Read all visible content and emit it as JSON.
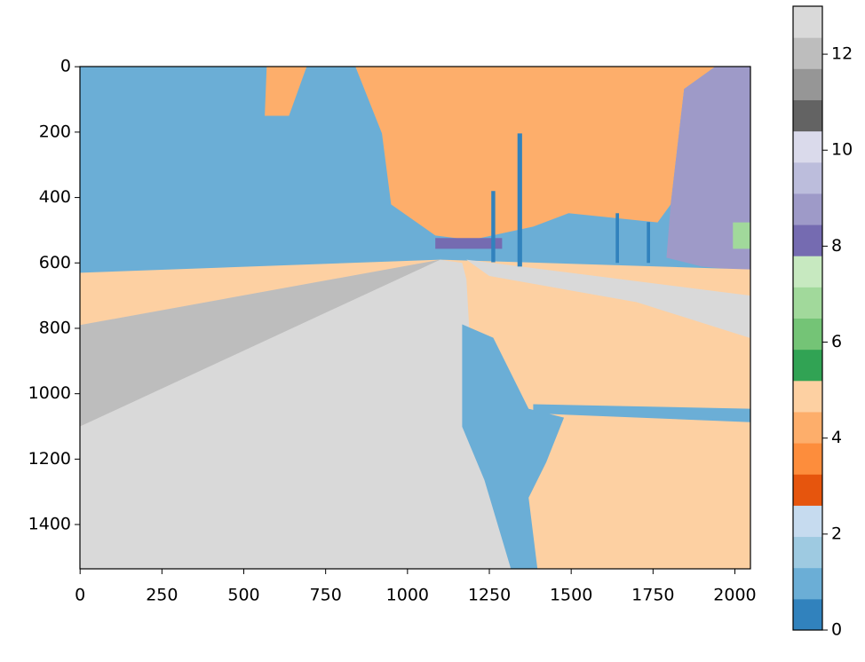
{
  "chart_data": {
    "type": "image",
    "xlim": [
      -0.5,
      2047.5
    ],
    "ylim": [
      1535.5,
      -0.5
    ],
    "xticks": [
      0,
      250,
      500,
      750,
      1000,
      1250,
      1500,
      1750,
      2000
    ],
    "yticks": [
      0,
      200,
      400,
      600,
      800,
      1000,
      1200,
      1400
    ],
    "colormap": [
      "#3182bd",
      "#6baed6",
      "#9ecae1",
      "#c6dbef",
      "#e6550d",
      "#fd8d3c",
      "#fdae6b",
      "#fdd0a2",
      "#31a354",
      "#74c476",
      "#a1d99b",
      "#c7e9c0",
      "#756bb1",
      "#9e9ac8",
      "#bcbddc",
      "#dadaeb",
      "#636363",
      "#969696",
      "#bdbdbd",
      "#d9d9d9"
    ],
    "clim": [
      0,
      13
    ],
    "colorbar_ticks": [
      0,
      2,
      4,
      6,
      8,
      10,
      12
    ],
    "regions": [
      {
        "value": 1,
        "points": [
          [
            0,
            0
          ],
          [
            2048,
            0
          ],
          [
            2048,
            1536
          ],
          [
            0,
            1536
          ]
        ]
      },
      {
        "value": 4,
        "points": [
          [
            841,
            0
          ],
          [
            1940,
            0
          ],
          [
            1845,
            68
          ],
          [
            1804,
            421
          ],
          [
            1764,
            476
          ],
          [
            1492,
            448
          ],
          [
            1384,
            489
          ],
          [
            1194,
            530
          ],
          [
            1085,
            516
          ],
          [
            950,
            421
          ],
          [
            922,
            204
          ]
        ]
      },
      {
        "value": 4,
        "points": [
          [
            570,
            0
          ],
          [
            692,
            0
          ],
          [
            638,
            150
          ],
          [
            564,
            150
          ]
        ]
      },
      {
        "value": 9,
        "points": [
          [
            1940,
            0
          ],
          [
            2048,
            0
          ],
          [
            2048,
            625
          ],
          [
            1899,
            611
          ],
          [
            1791,
            584
          ],
          [
            1804,
            421
          ],
          [
            1845,
            68
          ]
        ]
      },
      {
        "value": 5,
        "points": [
          [
            0,
            630
          ],
          [
            1100,
            590
          ],
          [
            2048,
            620
          ],
          [
            2048,
            1536
          ],
          [
            0,
            1536
          ]
        ]
      },
      {
        "value": 13,
        "points": [
          [
            1180,
            590
          ],
          [
            2048,
            700
          ],
          [
            2048,
            830
          ],
          [
            1700,
            720
          ],
          [
            1250,
            640
          ]
        ]
      },
      {
        "value": 12,
        "points": [
          [
            0,
            790
          ],
          [
            1100,
            590
          ],
          [
            1150,
            600
          ],
          [
            0,
            1100
          ]
        ]
      },
      {
        "value": 13,
        "points": [
          [
            1100,
            590
          ],
          [
            1167,
            600
          ],
          [
            1180,
            650
          ],
          [
            1200,
            1000
          ],
          [
            1316,
            1536
          ],
          [
            0,
            1536
          ],
          [
            0,
            1100
          ]
        ]
      },
      {
        "value": 1,
        "points": [
          [
            1167,
            788
          ],
          [
            1262,
            829
          ],
          [
            1370,
            1046
          ],
          [
            1478,
            1073
          ],
          [
            1424,
            1209
          ],
          [
            1370,
            1318
          ],
          [
            1397,
            1536
          ],
          [
            1316,
            1536
          ],
          [
            1235,
            1264
          ],
          [
            1167,
            1101
          ]
        ]
      },
      {
        "value": 1,
        "points": [
          [
            1384,
            1032
          ],
          [
            2048,
            1046
          ],
          [
            2048,
            1087
          ],
          [
            1384,
            1060
          ]
        ]
      },
      {
        "value": 8,
        "points": [
          [
            1085,
            524
          ],
          [
            1289,
            524
          ],
          [
            1289,
            557
          ],
          [
            1085,
            557
          ]
        ]
      },
      {
        "value": 7,
        "points": [
          [
            1994,
            476
          ],
          [
            2048,
            476
          ],
          [
            2048,
            557
          ],
          [
            1994,
            557
          ]
        ]
      },
      {
        "value": 0,
        "points": [
          [
            1336,
            204
          ],
          [
            1350,
            204
          ],
          [
            1350,
            611
          ],
          [
            1336,
            611
          ]
        ]
      },
      {
        "value": 0,
        "points": [
          [
            1256,
            380
          ],
          [
            1268,
            380
          ],
          [
            1268,
            598
          ],
          [
            1256,
            598
          ]
        ]
      },
      {
        "value": 0,
        "points": [
          [
            1636,
            448
          ],
          [
            1646,
            448
          ],
          [
            1646,
            600
          ],
          [
            1636,
            600
          ]
        ]
      },
      {
        "value": 0,
        "points": [
          [
            1731,
            475
          ],
          [
            1741,
            475
          ],
          [
            1741,
            600
          ],
          [
            1731,
            600
          ]
        ]
      }
    ]
  }
}
